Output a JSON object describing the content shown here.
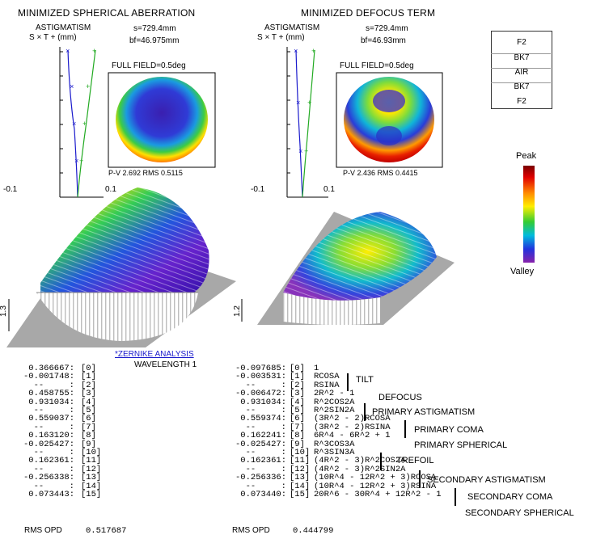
{
  "colors": {
    "s_curve": "#1a1acc",
    "t_curve": "#22aa22",
    "link": "#1a1acc"
  },
  "left_panel": {
    "title": "MINIMIZED SPHERICAL ABERRATION",
    "astig_label": "ASTIGMATISM",
    "astig_legend": "S × T + (mm)",
    "s_value": "s=729.4mm",
    "bf_value": "bf=46.975mm",
    "full_field": "FULL FIELD=0.5deg",
    "pv_rms": "P-V 2.692 RMS 0.5115",
    "axis_min": "-0.1",
    "axis_max": "0.1",
    "scale": "1.3"
  },
  "right_panel": {
    "title": "MINIMIZED DEFOCUS TERM",
    "astig_label": "ASTIGMATISM",
    "astig_legend": "S × T + (mm)",
    "s_value": "s=729.4mm",
    "bf_value": "bf=46.93mm",
    "full_field": "FULL FIELD=0.5deg",
    "pv_rms": "P-V 2.436 RMS 0.4415",
    "axis_min": "-0.1",
    "axis_max": "0.1",
    "scale": "1.2"
  },
  "lens_legend": [
    "F2",
    "BK7",
    "AIR",
    "BK7",
    "F2"
  ],
  "colorbar": {
    "peak": "Peak",
    "valley": "Valley"
  },
  "zernike": {
    "link_label": "*ZERNIKE ANALYSIS",
    "wavelength": "WAVELENGTH 1",
    "left_values": [
      "0.366667:",
      "-0.001748:",
      "--     :",
      "0.458755:",
      "0.931034:",
      "--     :",
      "0.559037:",
      "--     :",
      "0.163120:",
      "-0.025427:",
      "--     :",
      "0.162361:",
      "--     :",
      "-0.256338:",
      "--     :",
      "0.073443:"
    ],
    "left_indices": [
      "[0]",
      "[1]",
      "[2]",
      "[3]",
      "[4]",
      "[5]",
      "[6]",
      "[7]",
      "[8]",
      "[9]",
      "[10]",
      "[11]",
      "[12]",
      "[13]",
      "[14]",
      "[15]"
    ],
    "right_values": [
      "-0.097685:",
      "-0.003531:",
      "--     :",
      "-0.006472:",
      "0.931034:",
      "--     :",
      "0.559374:",
      "--     :",
      "0.162241:",
      "-0.025427:",
      "--     :",
      "0.162361:",
      "--     :",
      "-0.256336:",
      "--     :",
      "0.073440:"
    ],
    "terms": [
      "1",
      "RCOSA",
      "RSINA",
      "2R^2 - 1",
      "R^2COS2A",
      "R^2SIN2A",
      "(3R^2 - 2)RCOSA",
      "(3R^2 - 2)RSINA",
      "6R^4 - 6R^2 + 1",
      "R^3COS3A",
      "R^3SIN3A",
      "(4R^2 - 3)R^2COS2A",
      "(4R^2 - 3)R^2SIN2A",
      "(10R^4 - 12R^2 + 3)RCOSA",
      "(10R^4 - 12R^2 + 3)RSINA",
      "20R^6 - 30R^4 + 12R^2 - 1"
    ],
    "groups": [
      "TILT",
      "DEFOCUS",
      "PRIMARY ASTIGMATISM",
      "PRIMARY COMA",
      "PRIMARY SPHERICAL",
      "TREFOIL",
      "SECONDARY ASTIGMATISM",
      "SECONDARY COMA",
      "SECONDARY SPHERICAL"
    ],
    "rms_label": "RMS OPD",
    "rms_left": "0.517687",
    "rms_right": "0.444799"
  }
}
